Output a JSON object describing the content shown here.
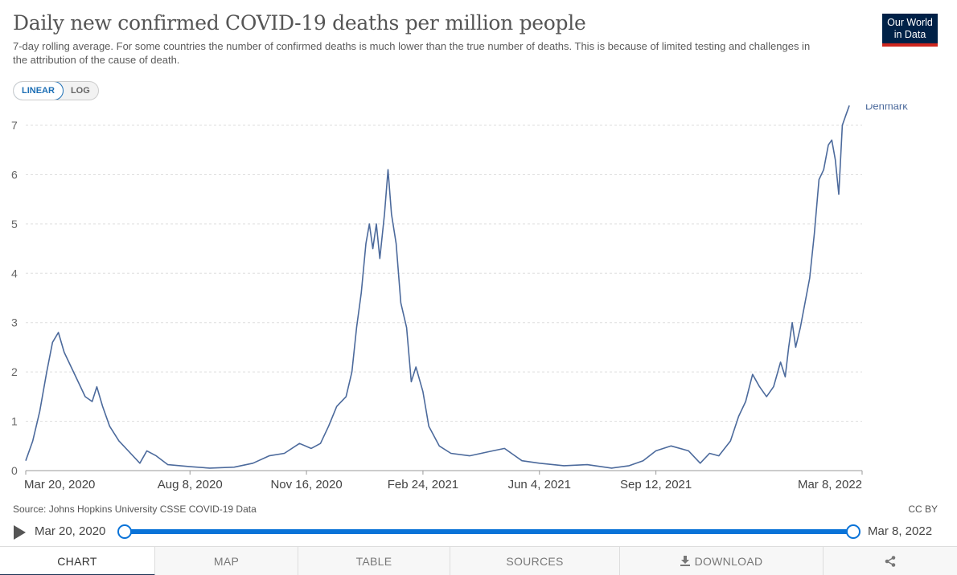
{
  "header": {
    "title": "Daily new confirmed COVID-19 deaths per million people",
    "subtitle": "7-day rolling average. For some countries the number of confirmed deaths is much lower than the true number of deaths. This is because of limited testing and challenges in the attribution of the cause of death.",
    "logo_line1": "Our World",
    "logo_line2": "in Data"
  },
  "scale_toggle": {
    "linear_label": "LINEAR",
    "log_label": "LOG",
    "selected": "LINEAR"
  },
  "footer": {
    "source": "Source: Johns Hopkins University CSSE COVID-19 Data",
    "license": "CC BY"
  },
  "timeline": {
    "start_label": "Mar 20, 2020",
    "end_label": "Mar 8, 2022"
  },
  "tabs": [
    {
      "label": "CHART",
      "active": true
    },
    {
      "label": "MAP"
    },
    {
      "label": "TABLE"
    },
    {
      "label": "SOURCES"
    },
    {
      "label": "DOWNLOAD",
      "icon": "download-icon"
    },
    {
      "label": "",
      "icon": "share-icon"
    }
  ],
  "colors": {
    "series": "#4c6a9c",
    "accent": "#0a73d8",
    "logo_bg": "#002147",
    "logo_bar": "#ce261e"
  },
  "chart_data": {
    "type": "line",
    "title": "Daily new confirmed COVID-19 deaths per million people",
    "ylim": [
      0,
      7
    ],
    "y_ticks": [
      0,
      1,
      2,
      3,
      4,
      5,
      6,
      7
    ],
    "x_range": [
      "2020-03-20",
      "2022-03-08"
    ],
    "x_tick_labels": [
      {
        "date": "2020-03-20",
        "label": "Mar 20, 2020"
      },
      {
        "date": "2020-08-08",
        "label": "Aug 8, 2020"
      },
      {
        "date": "2020-11-16",
        "label": "Nov 16, 2020"
      },
      {
        "date": "2021-02-24",
        "label": "Feb 24, 2021"
      },
      {
        "date": "2021-06-04",
        "label": "Jun 4, 2021"
      },
      {
        "date": "2021-09-12",
        "label": "Sep 12, 2021"
      },
      {
        "date": "2022-03-08",
        "label": "Mar 8, 2022"
      }
    ],
    "grid": true,
    "series": [
      {
        "name": "Denmark",
        "points": [
          [
            "2020-03-20",
            0.2
          ],
          [
            "2020-03-26",
            0.6
          ],
          [
            "2020-04-01",
            1.2
          ],
          [
            "2020-04-07",
            2.0
          ],
          [
            "2020-04-12",
            2.6
          ],
          [
            "2020-04-17",
            2.8
          ],
          [
            "2020-04-22",
            2.4
          ],
          [
            "2020-04-28",
            2.1
          ],
          [
            "2020-05-04",
            1.8
          ],
          [
            "2020-05-10",
            1.5
          ],
          [
            "2020-05-16",
            1.4
          ],
          [
            "2020-05-20",
            1.7
          ],
          [
            "2020-05-25",
            1.3
          ],
          [
            "2020-05-31",
            0.9
          ],
          [
            "2020-06-08",
            0.6
          ],
          [
            "2020-06-18",
            0.35
          ],
          [
            "2020-06-26",
            0.15
          ],
          [
            "2020-07-02",
            0.4
          ],
          [
            "2020-07-10",
            0.3
          ],
          [
            "2020-07-20",
            0.12
          ],
          [
            "2020-08-08",
            0.08
          ],
          [
            "2020-08-25",
            0.05
          ],
          [
            "2020-09-15",
            0.07
          ],
          [
            "2020-10-01",
            0.15
          ],
          [
            "2020-10-15",
            0.3
          ],
          [
            "2020-10-28",
            0.35
          ],
          [
            "2020-11-10",
            0.55
          ],
          [
            "2020-11-20",
            0.45
          ],
          [
            "2020-11-28",
            0.55
          ],
          [
            "2020-12-05",
            0.9
          ],
          [
            "2020-12-12",
            1.3
          ],
          [
            "2020-12-20",
            1.5
          ],
          [
            "2020-12-25",
            2.0
          ],
          [
            "2020-12-29",
            2.9
          ],
          [
            "2021-01-02",
            3.6
          ],
          [
            "2021-01-06",
            4.6
          ],
          [
            "2021-01-09",
            5.0
          ],
          [
            "2021-01-12",
            4.5
          ],
          [
            "2021-01-15",
            5.0
          ],
          [
            "2021-01-18",
            4.3
          ],
          [
            "2021-01-22",
            5.2
          ],
          [
            "2021-01-25",
            6.1
          ],
          [
            "2021-01-28",
            5.2
          ],
          [
            "2021-02-01",
            4.6
          ],
          [
            "2021-02-05",
            3.4
          ],
          [
            "2021-02-10",
            2.9
          ],
          [
            "2021-02-14",
            1.8
          ],
          [
            "2021-02-18",
            2.1
          ],
          [
            "2021-02-24",
            1.6
          ],
          [
            "2021-03-01",
            0.9
          ],
          [
            "2021-03-10",
            0.5
          ],
          [
            "2021-03-20",
            0.35
          ],
          [
            "2021-04-05",
            0.3
          ],
          [
            "2021-04-25",
            0.4
          ],
          [
            "2021-05-05",
            0.45
          ],
          [
            "2021-05-20",
            0.2
          ],
          [
            "2021-06-04",
            0.15
          ],
          [
            "2021-06-25",
            0.1
          ],
          [
            "2021-07-15",
            0.12
          ],
          [
            "2021-08-05",
            0.05
          ],
          [
            "2021-08-20",
            0.1
          ],
          [
            "2021-09-01",
            0.2
          ],
          [
            "2021-09-12",
            0.4
          ],
          [
            "2021-09-25",
            0.5
          ],
          [
            "2021-10-10",
            0.4
          ],
          [
            "2021-10-20",
            0.15
          ],
          [
            "2021-10-28",
            0.35
          ],
          [
            "2021-11-05",
            0.3
          ],
          [
            "2021-11-15",
            0.6
          ],
          [
            "2021-11-22",
            1.1
          ],
          [
            "2021-11-28",
            1.4
          ],
          [
            "2021-12-04",
            1.95
          ],
          [
            "2021-12-10",
            1.7
          ],
          [
            "2021-12-16",
            1.5
          ],
          [
            "2021-12-22",
            1.7
          ],
          [
            "2021-12-28",
            2.2
          ],
          [
            "2022-01-01",
            1.9
          ],
          [
            "2022-01-04",
            2.5
          ],
          [
            "2022-01-07",
            3.0
          ],
          [
            "2022-01-10",
            2.5
          ],
          [
            "2022-01-14",
            2.9
          ],
          [
            "2022-01-18",
            3.4
          ],
          [
            "2022-01-22",
            3.9
          ],
          [
            "2022-01-26",
            4.8
          ],
          [
            "2022-01-30",
            5.9
          ],
          [
            "2022-02-03",
            6.1
          ],
          [
            "2022-02-07",
            6.6
          ],
          [
            "2022-02-10",
            6.7
          ],
          [
            "2022-02-13",
            6.3
          ],
          [
            "2022-02-16",
            5.6
          ],
          [
            "2022-02-19",
            7.0
          ],
          [
            "2022-02-22",
            7.2
          ],
          [
            "2022-02-25",
            7.4
          ]
        ]
      }
    ],
    "series_label": "Denmark"
  }
}
